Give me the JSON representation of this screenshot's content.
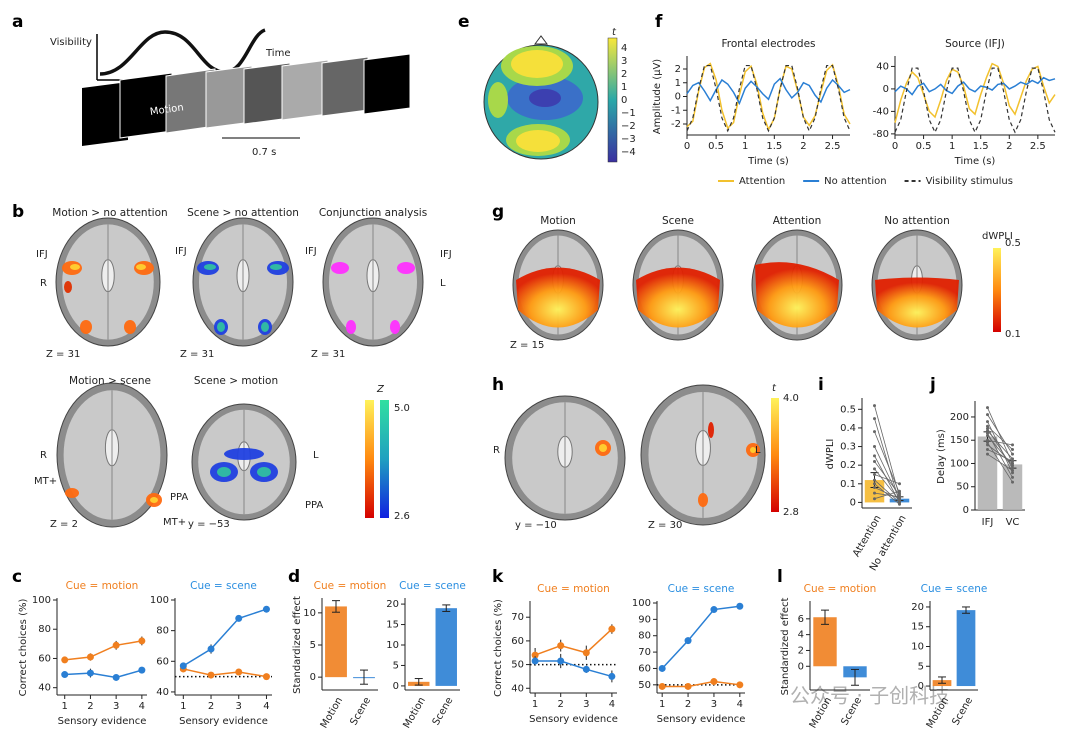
{
  "figure": {
    "panel_letters": [
      "a",
      "e",
      "f",
      "b",
      "g",
      "h",
      "i",
      "j",
      "c",
      "d",
      "k",
      "l"
    ],
    "a": {
      "y_label": "Visibility",
      "x_label": "Time",
      "frame_label": "Motion",
      "duration": "0.7 s"
    },
    "b": {
      "titles": [
        "Motion > no attention",
        "Scene > no attention",
        "Conjunction analysis",
        "Motion > scene",
        "Scene > motion"
      ],
      "labels": [
        "IFJ",
        "IFJ",
        "IFJ",
        "IFJ",
        "R",
        "L",
        "Z = 31",
        "Z = 31",
        "Z = 31",
        "R",
        "L",
        "MT+",
        "MT+",
        "PPA",
        "PPA",
        "Z = 2",
        "y = −53"
      ],
      "colorbar": {
        "title": "Z",
        "max": "5.0",
        "min": "2.6"
      }
    },
    "e": {
      "colorbar": {
        "title": "t",
        "ticks": [
          "4",
          "3",
          "2",
          "1",
          "0",
          "−1",
          "−2",
          "−3",
          "−4"
        ]
      }
    },
    "g": {
      "titles": [
        "Motion",
        "Scene",
        "Attention",
        "No attention"
      ],
      "labels": [
        "Z = 15"
      ],
      "colorbar": {
        "title": "dWPLI",
        "max": "0.5",
        "min": "0.1"
      }
    },
    "h": {
      "labels": [
        "R",
        "L",
        "y = −10",
        "Z = 30"
      ],
      "colorbar": {
        "title": "t",
        "max": "4.0",
        "min": "2.8"
      }
    },
    "watermark": "公众号 · 子创科技"
  },
  "chart_data": [
    {
      "type": "line",
      "title": "Frontal electrodes",
      "ylabel": "Amplitude (μV)",
      "xlabel": "Time (s)",
      "x": [
        0,
        0.1,
        0.2,
        0.3,
        0.4,
        0.5,
        0.6,
        0.7,
        0.8,
        0.9,
        1,
        1.1,
        1.2,
        1.3,
        1.4,
        1.5,
        1.6,
        1.7,
        1.8,
        1.9,
        2,
        2.1,
        2.2,
        2.3,
        2.4,
        2.5,
        2.6,
        2.7,
        2.8
      ],
      "xlim": [
        0,
        2.8
      ],
      "xticks": [
        0,
        0.5,
        1,
        1.5,
        2,
        2.5
      ],
      "ylim": [
        -2.8,
        2.8
      ],
      "yticks": [
        -2,
        -1,
        0,
        1,
        2
      ],
      "series": [
        {
          "name": "Attention",
          "color": "#f2c12e",
          "values": [
            -2.2,
            -1.8,
            0.4,
            2.1,
            2.4,
            1.2,
            -1,
            -2.3,
            -1.9,
            0.1,
            1.8,
            2.2,
            0.9,
            -1.2,
            -2.4,
            -1.6,
            0.6,
            2.2,
            2,
            0.4,
            -1.5,
            -2.1,
            -1.4,
            0.3,
            1.9,
            2.3,
            0.8,
            -1.3,
            -2
          ]
        },
        {
          "name": "No attention",
          "color": "#2a7fd4",
          "values": [
            0.2,
            0.8,
            1,
            0.4,
            -0.3,
            0.5,
            1.2,
            0.9,
            0.3,
            -0.5,
            0.6,
            1.1,
            0.7,
            0.2,
            -0.2,
            0.9,
            1.3,
            0.5,
            -0.1,
            0.3,
            1,
            0.8,
            0.1,
            -0.4,
            0.6,
            1.2,
            0.8,
            0.3,
            0.5
          ]
        },
        {
          "name": "Visibility stimulus",
          "color": "#333333",
          "dash": true,
          "values": [
            -2.5,
            -1.56,
            0.56,
            2.25,
            2.25,
            0.56,
            -1.56,
            -2.5,
            -1.56,
            0.56,
            2.25,
            2.25,
            0.56,
            -1.56,
            -2.5,
            -1.56,
            0.56,
            2.25,
            2.25,
            0.56,
            -1.56,
            -2.5,
            -1.56,
            0.56,
            2.25,
            2.25,
            0.56,
            -1.56,
            -2.5
          ]
        }
      ]
    },
    {
      "type": "line",
      "title": "Source (IFJ)",
      "xlabel": "Time (s)",
      "x": [
        0,
        0.1,
        0.2,
        0.3,
        0.4,
        0.5,
        0.6,
        0.7,
        0.8,
        0.9,
        1,
        1.1,
        1.2,
        1.3,
        1.4,
        1.5,
        1.6,
        1.7,
        1.8,
        1.9,
        2,
        2.1,
        2.2,
        2.3,
        2.4,
        2.5,
        2.6,
        2.7,
        2.8
      ],
      "xlim": [
        0,
        2.8
      ],
      "xticks": [
        0,
        0.5,
        1,
        1.5,
        2,
        2.5
      ],
      "ylim": [
        -82,
        55
      ],
      "yticks": [
        -80,
        -40,
        0,
        40
      ],
      "series": [
        {
          "color": "#f2c12e",
          "values": [
            -60,
            -20,
            10,
            30,
            20,
            -10,
            -40,
            -50,
            -20,
            15,
            35,
            30,
            5,
            -35,
            -45,
            -10,
            20,
            45,
            40,
            10,
            -30,
            -45,
            -15,
            15,
            35,
            40,
            5,
            -25,
            -10
          ]
        },
        {
          "color": "#2a7fd4",
          "values": [
            -5,
            5,
            0,
            -10,
            5,
            10,
            -5,
            0,
            8,
            -3,
            -8,
            5,
            12,
            0,
            -5,
            5,
            3,
            -2,
            8,
            10,
            0,
            5,
            12,
            8,
            15,
            10,
            20,
            15,
            18
          ]
        },
        {
          "color": "#333333",
          "dash": true,
          "values": [
            -77,
            -55,
            -4,
            37,
            37,
            -4,
            -55,
            -77,
            -55,
            -4,
            37,
            37,
            -4,
            -55,
            -77,
            -55,
            -4,
            37,
            37,
            -4,
            -55,
            -77,
            -55,
            -4,
            37,
            37,
            -4,
            -55,
            -77
          ]
        }
      ]
    },
    {
      "type": "bar",
      "ylabel": "dWPLI",
      "categories": [
        "Attention",
        "No attention"
      ],
      "values": [
        0.12,
        0.02
      ],
      "errors": [
        0.04,
        0.01
      ],
      "colors": [
        "#f5b82e",
        "#2a7fd4"
      ],
      "rotate_labels": true,
      "ylim": [
        -0.03,
        0.55
      ],
      "yticks": [
        0,
        0.1,
        0.2,
        0.3,
        0.4,
        0.5
      ],
      "pairs": [
        [
          0.52,
          0.03
        ],
        [
          0.45,
          0
        ],
        [
          0.38,
          0.05
        ],
        [
          0.3,
          0.02
        ],
        [
          0.25,
          0
        ],
        [
          0.22,
          0.04
        ],
        [
          0.18,
          0.01
        ],
        [
          0.15,
          0.1
        ],
        [
          0.12,
          0
        ],
        [
          0.08,
          0.02
        ],
        [
          0.05,
          0.03
        ],
        [
          0.02,
          0.06
        ],
        [
          0.1,
          -0.01
        ]
      ]
    },
    {
      "type": "bar",
      "ylabel": "Delay (ms)",
      "categories": [
        "IFJ",
        "VC"
      ],
      "values": [
        158,
        98
      ],
      "errors": [
        10,
        8
      ],
      "colors": [
        "#b3b3b3",
        "#b3b3b3"
      ],
      "ylim": [
        0,
        230
      ],
      "yticks": [
        0,
        50,
        100,
        150,
        200
      ],
      "pairs": [
        [
          220,
          100
        ],
        [
          205,
          120
        ],
        [
          190,
          80
        ],
        [
          180,
          130
        ],
        [
          175,
          90
        ],
        [
          170,
          110
        ],
        [
          165,
          70
        ],
        [
          160,
          95
        ],
        [
          150,
          140
        ],
        [
          145,
          60
        ],
        [
          140,
          100
        ],
        [
          130,
          105
        ],
        [
          120,
          85
        ]
      ]
    },
    {
      "type": "line",
      "title": "Cue = motion",
      "title_color": "#f07f1f",
      "ylabel": "Correct choices (%)",
      "xlabel": "Sensory evidence",
      "markers": true,
      "x": [
        1,
        2,
        3,
        4
      ],
      "xlim": [
        0.7,
        4.2
      ],
      "xticks": [
        1,
        2,
        3,
        4
      ],
      "ylim": [
        35,
        100
      ],
      "yticks": [
        40,
        60,
        80,
        100
      ],
      "series": [
        {
          "color": "#f07f1f",
          "values": [
            59,
            61,
            69,
            72
          ],
          "errors": [
            2,
            2.5,
            3,
            3
          ]
        },
        {
          "color": "#2a7fd4",
          "values": [
            49,
            50,
            47,
            52
          ],
          "errors": [
            2,
            3,
            2,
            2
          ]
        }
      ]
    },
    {
      "type": "line",
      "title": "Cue = scene",
      "title_color": "#2a8ee0",
      "xlabel": "Sensory evidence",
      "markers": true,
      "hline": 50,
      "x": [
        1,
        2,
        3,
        4
      ],
      "xlim": [
        0.7,
        4.2
      ],
      "xticks": [
        1,
        2,
        3,
        4
      ],
      "ylim": [
        38,
        100
      ],
      "yticks": [
        40,
        60,
        80,
        100
      ],
      "series": [
        {
          "color": "#f07f1f",
          "values": [
            55,
            51,
            53,
            50
          ],
          "errors": [
            2,
            1.5,
            2,
            1.5
          ]
        },
        {
          "color": "#2a7fd4",
          "values": [
            57,
            68,
            88,
            94
          ],
          "errors": [
            2,
            3,
            1.5,
            1
          ]
        }
      ]
    },
    {
      "type": "bar",
      "title": "Cue = motion",
      "title_color": "#f07f1f",
      "ylabel": "Standardized effect",
      "categories": [
        "Motion",
        "Scene"
      ],
      "values": [
        11,
        0
      ],
      "errors": [
        0.9,
        1.1
      ],
      "colors": [
        "#f07f1f",
        "#2a7fd4"
      ],
      "rotate_labels": true,
      "ylim": [
        -2,
        12
      ],
      "yticks": [
        0,
        5,
        10
      ]
    },
    {
      "type": "bar",
      "title": "Cue = scene",
      "title_color": "#2a8ee0",
      "categories": [
        "Motion",
        "Scene"
      ],
      "values": [
        1,
        19
      ],
      "errors": [
        0.8,
        0.8
      ],
      "colors": [
        "#f07f1f",
        "#2a7fd4"
      ],
      "rotate_labels": true,
      "ylim": [
        -1,
        21
      ],
      "yticks": [
        0,
        5,
        10,
        15,
        20
      ]
    },
    {
      "type": "line",
      "title": "Cue = motion",
      "title_color": "#f07f1f",
      "ylabel": "Correct choices (%)",
      "xlabel": "Sensory evidence",
      "markers": true,
      "hline": 50,
      "x": [
        1,
        2,
        3,
        4
      ],
      "xlim": [
        0.8,
        4.2
      ],
      "xticks": [
        1,
        2,
        3,
        4
      ],
      "ylim": [
        38,
        76
      ],
      "yticks": [
        40,
        50,
        60,
        70
      ],
      "series": [
        {
          "color": "#f07f1f",
          "values": [
            54,
            58,
            55,
            65
          ],
          "errors": [
            3,
            2.5,
            3,
            2
          ]
        },
        {
          "color": "#2a7fd4",
          "values": [
            51.5,
            51.5,
            48,
            45
          ],
          "errors": [
            2,
            3,
            1.5,
            2.5
          ]
        }
      ]
    },
    {
      "type": "line",
      "title": "Cue = scene",
      "title_color": "#2a8ee0",
      "xlabel": "Sensory evidence",
      "markers": true,
      "hline": 50,
      "x": [
        1,
        2,
        3,
        4
      ],
      "xlim": [
        0.8,
        4.2
      ],
      "xticks": [
        1,
        2,
        3,
        4
      ],
      "ylim": [
        45,
        100
      ],
      "yticks": [
        50,
        60,
        70,
        80,
        90,
        100
      ],
      "series": [
        {
          "color": "#f07f1f",
          "values": [
            49,
            49,
            52,
            50
          ],
          "errors": [
            0.5,
            0.5,
            0.8,
            0.5
          ]
        },
        {
          "color": "#2a7fd4",
          "values": [
            60,
            77,
            96,
            98
          ],
          "errors": [
            1,
            2,
            1,
            1
          ]
        }
      ]
    },
    {
      "type": "bar",
      "title": "Cue = motion",
      "title_color": "#f07f1f",
      "ylabel": "Standardized effect",
      "categories": [
        "Motion",
        "Scene"
      ],
      "values": [
        6.2,
        -1.4
      ],
      "errors": [
        0.9,
        1
      ],
      "colors": [
        "#f07f1f",
        "#2a7fd4"
      ],
      "rotate_labels": true,
      "ylim": [
        -3,
        8
      ],
      "yticks": [
        0,
        2,
        4,
        6
      ]
    },
    {
      "type": "bar",
      "title": "Cue = scene",
      "title_color": "#2a8ee0",
      "categories": [
        "Motion",
        "Scene"
      ],
      "values": [
        1.5,
        19.2
      ],
      "errors": [
        0.8,
        0.8
      ],
      "colors": [
        "#f07f1f",
        "#2a7fd4"
      ],
      "rotate_labels": true,
      "ylim": [
        -1,
        21
      ],
      "yticks": [
        0,
        5,
        10,
        15,
        20
      ]
    }
  ]
}
